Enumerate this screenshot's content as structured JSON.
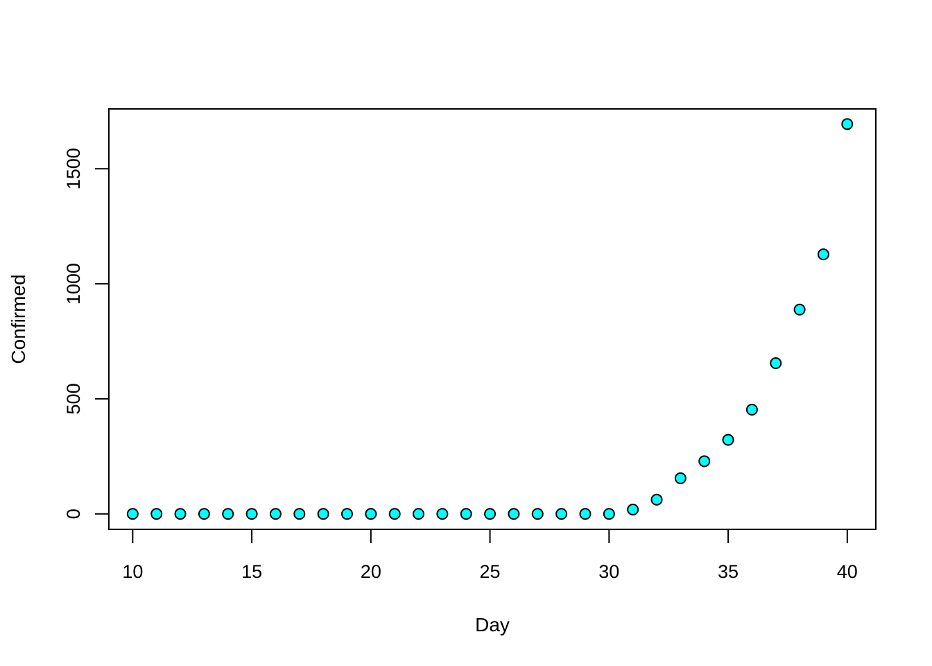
{
  "chart_data": {
    "type": "scatter",
    "title": "",
    "xlabel": "Day",
    "ylabel": "Confirmed",
    "xlim": [
      9,
      41.2
    ],
    "ylim": [
      -67,
      1760
    ],
    "x_ticks": [
      10,
      15,
      20,
      25,
      30,
      35,
      40
    ],
    "x_tick_labels": [
      "10",
      "15",
      "20",
      "25",
      "30",
      "35",
      "40"
    ],
    "y_ticks": [
      0,
      500,
      1000,
      1500
    ],
    "y_tick_labels": [
      "0",
      "500",
      "1000",
      "1500"
    ],
    "grid": false,
    "marker": {
      "fill": "#00ffff",
      "stroke": "#000000"
    },
    "points": [
      {
        "x": 10,
        "y": 0
      },
      {
        "x": 11,
        "y": 0
      },
      {
        "x": 12,
        "y": 0
      },
      {
        "x": 13,
        "y": 0
      },
      {
        "x": 14,
        "y": 0
      },
      {
        "x": 15,
        "y": 0
      },
      {
        "x": 16,
        "y": 0
      },
      {
        "x": 17,
        "y": 0
      },
      {
        "x": 18,
        "y": 0
      },
      {
        "x": 19,
        "y": 0
      },
      {
        "x": 20,
        "y": 0
      },
      {
        "x": 21,
        "y": 0
      },
      {
        "x": 22,
        "y": 0
      },
      {
        "x": 23,
        "y": 0
      },
      {
        "x": 24,
        "y": 0
      },
      {
        "x": 25,
        "y": 0
      },
      {
        "x": 26,
        "y": 0
      },
      {
        "x": 27,
        "y": 0
      },
      {
        "x": 28,
        "y": 0
      },
      {
        "x": 29,
        "y": 0
      },
      {
        "x": 30,
        "y": 0
      },
      {
        "x": 31,
        "y": 19
      },
      {
        "x": 32,
        "y": 62
      },
      {
        "x": 33,
        "y": 155
      },
      {
        "x": 34,
        "y": 229
      },
      {
        "x": 35,
        "y": 322
      },
      {
        "x": 36,
        "y": 453
      },
      {
        "x": 37,
        "y": 655
      },
      {
        "x": 38,
        "y": 888
      },
      {
        "x": 39,
        "y": 1128
      },
      {
        "x": 40,
        "y": 1694
      }
    ]
  }
}
